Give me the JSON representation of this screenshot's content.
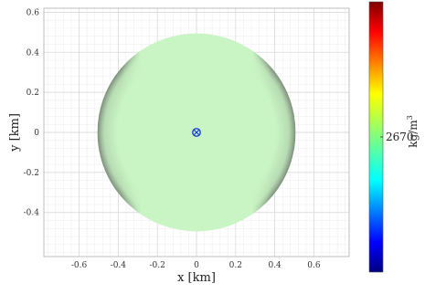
{
  "chart_data": {
    "type": "heatmap",
    "xlabel": "x [km]",
    "ylabel": "y [km]",
    "xlim": [
      -0.78,
      0.78
    ],
    "ylim": [
      -0.62,
      0.62
    ],
    "xticks": [
      "-0.6",
      "-0.4",
      "-0.2",
      "0",
      "0.2",
      "0.4",
      "0.6"
    ],
    "xtick_values": [
      -0.6,
      -0.4,
      -0.2,
      0,
      0.2,
      0.4,
      0.6
    ],
    "yticks": [
      "-0.4",
      "-0.2",
      "0",
      "0.2",
      "0.4",
      "0.6"
    ],
    "ytick_values": [
      -0.4,
      -0.2,
      0,
      0.2,
      0.4,
      0.6
    ],
    "grid": true,
    "sphere": {
      "center": [
        0,
        0
      ],
      "radius": 0.5,
      "density": 2670
    },
    "marker": {
      "x": 0,
      "y": 0,
      "symbol": "circled-x",
      "color": "#1f3fd1"
    },
    "colorbar": {
      "label": "kg/m",
      "label_superscript": "3",
      "tick_label": "2670",
      "colormap": "jet"
    },
    "fill_color": "#c9f5c4",
    "shade_color": "#6b6b6b"
  }
}
